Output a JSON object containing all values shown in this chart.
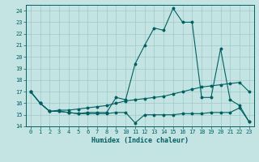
{
  "xlabel": "Humidex (Indice chaleur)",
  "bg_color": "#c4e4e4",
  "grid_color": "#a0c8c8",
  "line_color": "#006060",
  "xlim": [
    -0.5,
    23.5
  ],
  "ylim": [
    14,
    24.5
  ],
  "yticks": [
    14,
    15,
    16,
    17,
    18,
    19,
    20,
    21,
    22,
    23,
    24
  ],
  "xticks": [
    0,
    1,
    2,
    3,
    4,
    5,
    6,
    7,
    8,
    9,
    10,
    11,
    12,
    13,
    14,
    15,
    16,
    17,
    18,
    19,
    20,
    21,
    22,
    23
  ],
  "line1_x": [
    0,
    1,
    2,
    3,
    4,
    5,
    6,
    7,
    8,
    9,
    10,
    11,
    12,
    13,
    14,
    15,
    16,
    17,
    18,
    19,
    20,
    21,
    22,
    23
  ],
  "line1_y": [
    17.0,
    16.0,
    15.3,
    15.3,
    15.2,
    15.1,
    15.1,
    15.1,
    15.1,
    15.2,
    15.2,
    14.3,
    15.0,
    15.0,
    15.0,
    15.0,
    15.1,
    15.1,
    15.1,
    15.2,
    15.2,
    15.2,
    15.6,
    14.4
  ],
  "line2_x": [
    0,
    1,
    2,
    3,
    4,
    5,
    6,
    7,
    8,
    9,
    10,
    11,
    12,
    13,
    14,
    15,
    16,
    17,
    18,
    19,
    20,
    21,
    22,
    23
  ],
  "line2_y": [
    17.0,
    16.0,
    15.3,
    15.4,
    15.4,
    15.5,
    15.6,
    15.7,
    15.8,
    16.0,
    16.2,
    16.3,
    16.4,
    16.5,
    16.6,
    16.8,
    17.0,
    17.2,
    17.4,
    17.5,
    17.6,
    17.7,
    17.8,
    17.0
  ],
  "line3_x": [
    0,
    1,
    2,
    3,
    4,
    5,
    6,
    7,
    8,
    9,
    10,
    11,
    12,
    13,
    14,
    15,
    16,
    17,
    18,
    19,
    20,
    21,
    22,
    23
  ],
  "line3_y": [
    17.0,
    16.0,
    15.3,
    15.3,
    15.2,
    15.1,
    15.2,
    15.2,
    15.2,
    16.5,
    16.3,
    19.4,
    21.0,
    22.5,
    22.3,
    24.2,
    23.0,
    23.0,
    16.5,
    16.5,
    20.7,
    16.3,
    15.8,
    14.4
  ]
}
